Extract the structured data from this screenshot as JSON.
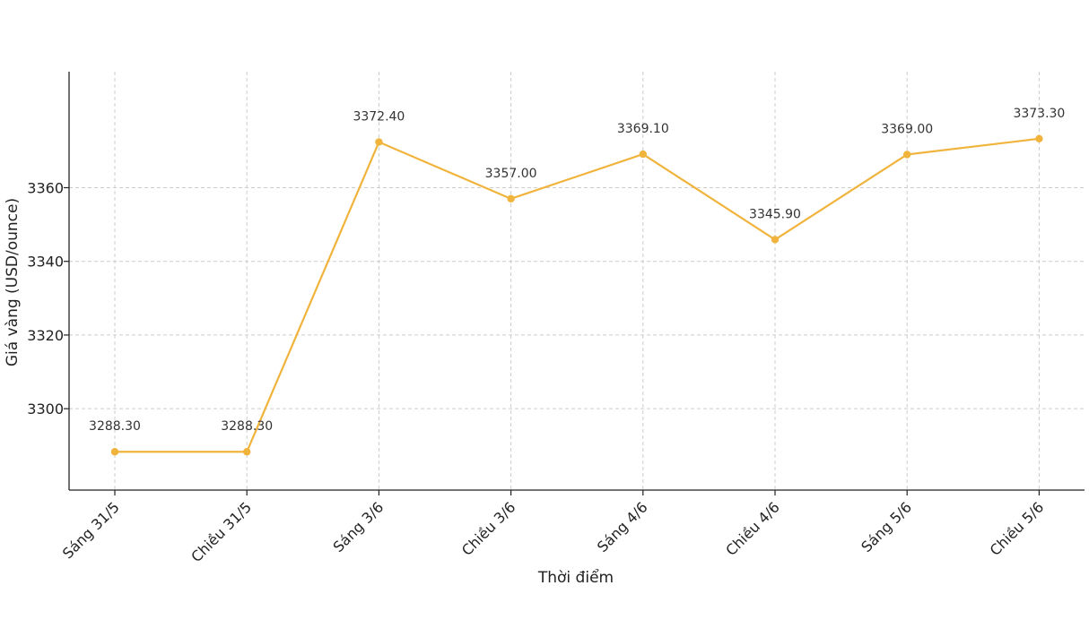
{
  "chart_data": {
    "type": "line",
    "categories": [
      "Sáng 31/5",
      "Chiều 31/5",
      "Sáng 3/6",
      "Chiều 3/6",
      "Sáng 4/6",
      "Chiều 4/6",
      "Sáng 5/6",
      "Chiều 5/6"
    ],
    "values": [
      3288.3,
      3288.3,
      3372.4,
      3357.0,
      3369.1,
      3345.9,
      3369.0,
      3373.3
    ],
    "data_labels": [
      "3288.30",
      "3288.30",
      "3372.40",
      "3357.00",
      "3369.10",
      "3345.90",
      "3369.00",
      "3373.30"
    ],
    "yticks": [
      3300,
      3320,
      3340,
      3360
    ],
    "ylim": [
      3277.9,
      3391.5
    ],
    "xlabel": "Thời điểm",
    "ylabel": "Giá vàng (USD/ounce)",
    "title": "",
    "grid": true,
    "line_color": "#f0b43c"
  }
}
